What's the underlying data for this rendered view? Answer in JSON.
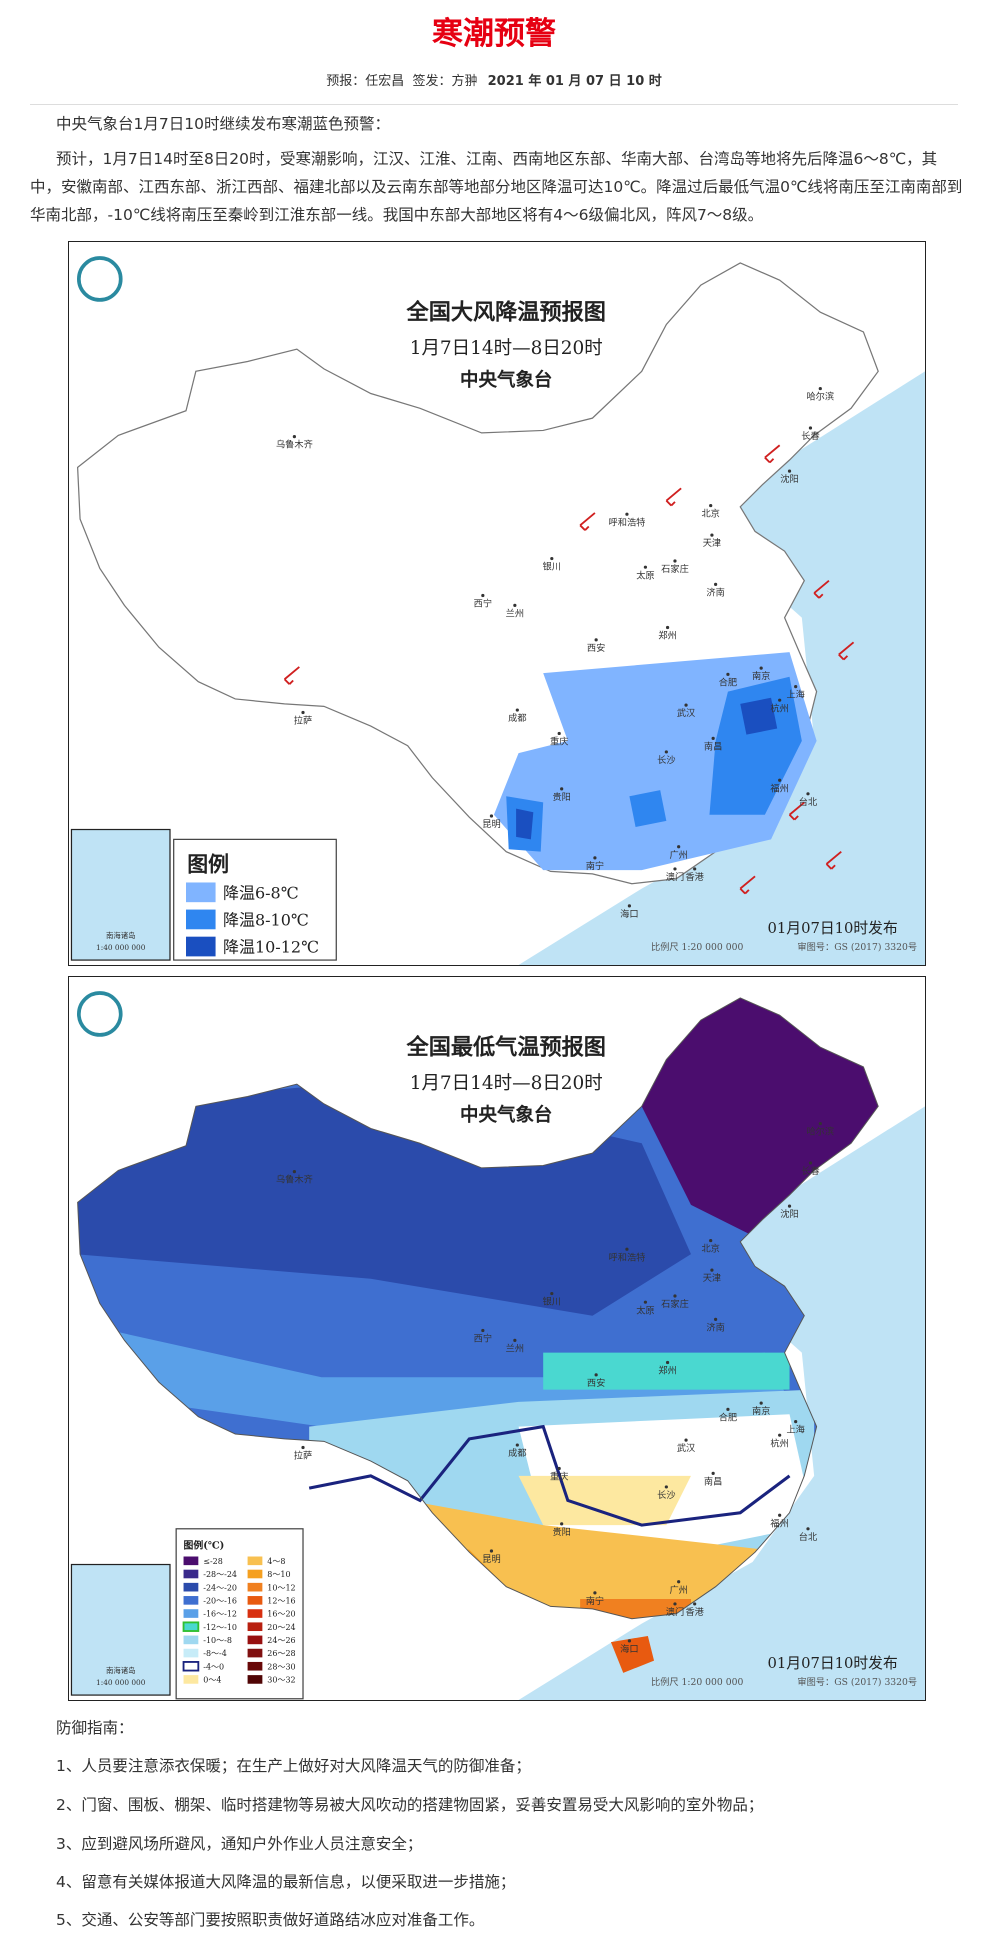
{
  "header": {
    "title": "寒潮预警",
    "forecaster": "预报：任宏昌",
    "issuer": "签发：方翀",
    "date": "2021 年 01 月 07 日 10 时"
  },
  "paragraphs": [
    "中央气象台1月7日10时继续发布寒潮蓝色预警：",
    "预计，1月7日14时至8日20时，受寒潮影响，江汉、江淮、江南、西南地区东部、华南大部、台湾岛等地将先后降温6～8℃，其中，安徽南部、江西东部、浙江西部、福建北部以及云南东部等地部分地区降温可达10℃。降温过后最低气温0℃线将南压至江南南部到华南北部，-10℃线将南压至秦岭到江淮东部一线。我国中东部大部地区将有4～6级偏北风，阵风7～8级。"
  ],
  "maps": [
    {
      "title": "全国大风降温预报图",
      "subtitle": "1月7日14时—8日20时",
      "org": "中央气象台",
      "legend_title": "图例",
      "legend": [
        {
          "label": "降温6-8℃",
          "color": "#80b4ff"
        },
        {
          "label": "降温8-10℃",
          "color": "#2f86f0"
        },
        {
          "label": "降温10-12℃",
          "color": "#1a4fc0"
        }
      ],
      "issued": "01月07日10时发布",
      "scale": "比例尺 1:20 000 000",
      "approval": "审图号：GS (2017) 3320号",
      "inset_label": "南海诸岛",
      "inset_scale": "1:40 000 000",
      "cities": [
        "乌鲁木齐",
        "哈尔滨",
        "长春",
        "沈阳",
        "呼和浩特",
        "北京",
        "天津",
        "银川",
        "太原",
        "石家庄",
        "济南",
        "西宁",
        "兰州",
        "西安",
        "郑州",
        "合肥",
        "南京",
        "上海",
        "杭州",
        "武汉",
        "成都",
        "重庆",
        "长沙",
        "南昌",
        "福州",
        "贵阳",
        "昆明",
        "台北",
        "南宁",
        "广州",
        "香港",
        "澳门",
        "海口",
        "拉萨"
      ]
    },
    {
      "title": "全国最低气温预报图",
      "subtitle": "1月7日14时—8日20时",
      "org": "中央气象台",
      "legend_title": "图例(℃)",
      "legend": [
        {
          "label": "≤-28",
          "color": "#4b0d6e"
        },
        {
          "label": "-28～-24",
          "color": "#3a2a8c"
        },
        {
          "label": "-24～-20",
          "color": "#2b4bab"
        },
        {
          "label": "-20～-16",
          "color": "#3f6fd0"
        },
        {
          "label": "-16～-12",
          "color": "#5aa0e8"
        },
        {
          "label": "-12～-10",
          "color": "#4ad8d0"
        },
        {
          "label": "-10～-8",
          "color": "#9fd8f0"
        },
        {
          "label": "-8～-4",
          "color": "#c7ecf8"
        },
        {
          "label": "-4～0",
          "color": "#ffffff"
        },
        {
          "label": "0～4",
          "color": "#fde8a0"
        },
        {
          "label": "4～8",
          "color": "#f8c050"
        },
        {
          "label": "8～10",
          "color": "#f5a020"
        },
        {
          "label": "10～12",
          "color": "#f08020"
        },
        {
          "label": "12～16",
          "color": "#e85a10"
        },
        {
          "label": "16～20",
          "color": "#d83010"
        },
        {
          "label": "20～24",
          "color": "#b82010"
        },
        {
          "label": "24～26",
          "color": "#981010"
        },
        {
          "label": "26～28",
          "color": "#801010"
        },
        {
          "label": "28～30",
          "color": "#680808"
        },
        {
          "label": "30～32",
          "color": "#500505"
        }
      ],
      "issued": "01月07日10时发布",
      "scale": "比例尺 1:20 000 000",
      "approval": "审图号：GS (2017) 3320号",
      "inset_label": "南海诸岛",
      "inset_scale": "1:40 000 000",
      "cities": [
        "乌鲁木齐",
        "哈尔滨",
        "长春",
        "沈阳",
        "呼和浩特",
        "北京",
        "天津",
        "银川",
        "太原",
        "石家庄",
        "济南",
        "西宁",
        "兰州",
        "西安",
        "郑州",
        "合肥",
        "南京",
        "上海",
        "杭州",
        "武汉",
        "成都",
        "重庆",
        "长沙",
        "南昌",
        "福州",
        "贵阳",
        "昆明",
        "台北",
        "南宁",
        "广州",
        "香港",
        "澳门",
        "海口",
        "拉萨"
      ]
    }
  ],
  "guide": {
    "title": "防御指南：",
    "items": [
      "1、人员要注意添衣保暖；在生产上做好对大风降温天气的防御准备；",
      "2、门窗、围板、棚架、临时搭建物等易被大风吹动的搭建物固紧，妥善安置易受大风影响的室外物品；",
      "3、应到避风场所避风，通知户外作业人员注意安全；",
      "4、留意有关媒体报道大风降温的最新信息，以便采取进一步措施；",
      "5、交通、公安等部门要按照职责做好道路结冰应对准备工作。"
    ]
  }
}
